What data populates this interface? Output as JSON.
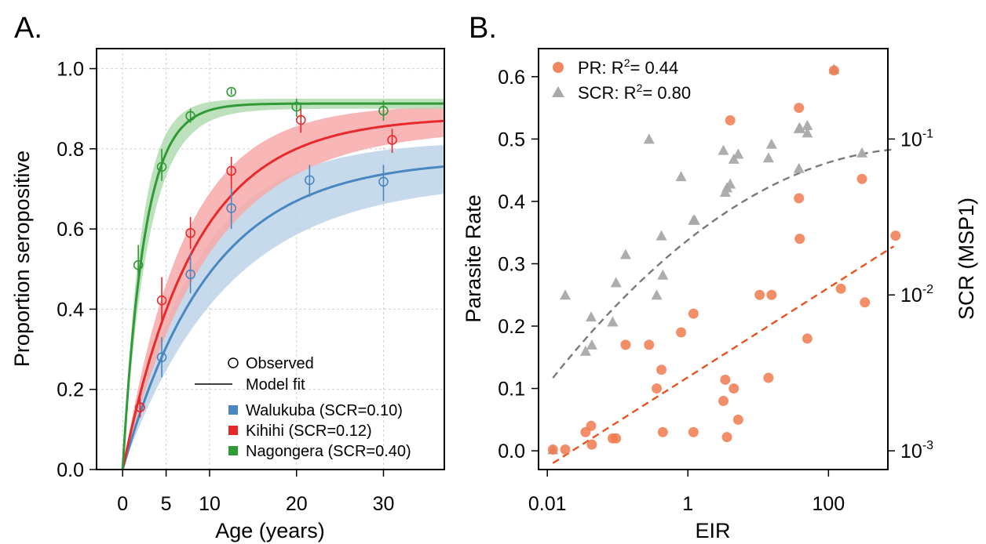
{
  "chart_data": [
    {
      "panel": "A.",
      "type": "line",
      "xlabel": "Age (years)",
      "ylabel": "Proportion seropositive",
      "xlim": [
        -3,
        37
      ],
      "ylim": [
        0,
        1.05
      ],
      "x_ticks": [
        0,
        5,
        10,
        20,
        30
      ],
      "x_tick_labels": [
        "0",
        "5",
        "10",
        "20",
        "30"
      ],
      "y_ticks": [
        0,
        0.2,
        0.4,
        0.6,
        0.8,
        1.0
      ],
      "y_tick_labels": [
        "0.0",
        "0.2",
        "0.4",
        "0.6",
        "0.8",
        "1.0"
      ],
      "grid": true,
      "legend_position": "bottom-right",
      "legend": {
        "observed": "Observed",
        "model": "Model fit"
      },
      "series": [
        {
          "name": "Walukuba (SCR=0.10)",
          "color": "#4a86c0",
          "band_color": "#bcd3e9",
          "model": {
            "scr": 0.1,
            "plateau": 0.775,
            "plateau_low": 0.72,
            "plateau_high": 0.82
          },
          "observed": [
            {
              "x": 2,
              "y": 0.155,
              "lo": 0.13,
              "hi": 0.18
            },
            {
              "x": 4.5,
              "y": 0.28,
              "lo": 0.23,
              "hi": 0.33
            },
            {
              "x": 7.8,
              "y": 0.487,
              "lo": 0.44,
              "hi": 0.54
            },
            {
              "x": 12.5,
              "y": 0.652,
              "lo": 0.6,
              "hi": 0.7
            },
            {
              "x": 21.5,
              "y": 0.722,
              "lo": 0.68,
              "hi": 0.76
            },
            {
              "x": 30,
              "y": 0.718,
              "lo": 0.67,
              "hi": 0.76
            }
          ]
        },
        {
          "name": "Kihihi (SCR=0.12)",
          "color": "#e8292a",
          "band_color": "#f7a9a9",
          "model": {
            "scr": 0.12,
            "plateau": 0.88,
            "plateau_low": 0.85,
            "plateau_high": 0.91
          },
          "observed": [
            {
              "x": 2,
              "y": 0.155,
              "lo": 0.13,
              "hi": 0.18
            },
            {
              "x": 4.5,
              "y": 0.422,
              "lo": 0.37,
              "hi": 0.48
            },
            {
              "x": 7.8,
              "y": 0.59,
              "lo": 0.55,
              "hi": 0.63
            },
            {
              "x": 12.5,
              "y": 0.745,
              "lo": 0.7,
              "hi": 0.78
            },
            {
              "x": 20.5,
              "y": 0.872,
              "lo": 0.84,
              "hi": 0.9
            },
            {
              "x": 31,
              "y": 0.822,
              "lo": 0.79,
              "hi": 0.85
            }
          ]
        },
        {
          "name": "Nagongera (SCR=0.40)",
          "color": "#2f9a36",
          "band_color": "#b3dcb2",
          "model": {
            "scr": 0.4,
            "plateau": 0.913,
            "plateau_low": 0.9,
            "plateau_high": 0.925
          },
          "observed": [
            {
              "x": 1.8,
              "y": 0.51,
              "lo": 0.46,
              "hi": 0.56
            },
            {
              "x": 4.5,
              "y": 0.755,
              "lo": 0.72,
              "hi": 0.8
            },
            {
              "x": 7.8,
              "y": 0.882,
              "lo": 0.865,
              "hi": 0.9
            },
            {
              "x": 12.5,
              "y": 0.942,
              "lo": 0.935,
              "hi": 0.95
            },
            {
              "x": 20,
              "y": 0.905,
              "lo": 0.88,
              "hi": 0.925
            },
            {
              "x": 30,
              "y": 0.895,
              "lo": 0.87,
              "hi": 0.92
            }
          ]
        }
      ]
    },
    {
      "panel": "B.",
      "type": "scatter",
      "xlabel": "EIR",
      "ylabel": "Parasite Rate",
      "y2label": "SCR (MSP1)",
      "x_scale": "log",
      "xlim": [
        0.0075,
        700
      ],
      "ylim": [
        -0.03,
        0.645
      ],
      "x_ticks": [
        0.01,
        1,
        100
      ],
      "x_tick_labels": [
        "0.01",
        "1",
        "100"
      ],
      "y_ticks": [
        0,
        0.1,
        0.2,
        0.3,
        0.4,
        0.5,
        0.6
      ],
      "y_tick_labels": [
        "0.0",
        "0.1",
        "0.2",
        "0.3",
        "0.4",
        "0.5",
        "0.6"
      ],
      "y2_scale": "log",
      "y2_ticks": [
        0.001,
        0.01,
        0.1
      ],
      "y2_tick_base": "10",
      "y2_tick_exponents": [
        "-3",
        "-2",
        "-1"
      ],
      "legend_position": "top-left",
      "series": [
        {
          "name": "PR",
          "r2_label": "PR:  R",
          "r2_value": "= 0.44",
          "marker": "circle",
          "color": "#f07a4d",
          "trend_color": "#e8531e",
          "trend": {
            "slope": 0.0717,
            "intercept": 0.118
          },
          "points": [
            [
              0.012,
              0.002
            ],
            [
              0.018,
              0.002
            ],
            [
              0.035,
              0.03
            ],
            [
              0.042,
              0.04
            ],
            [
              0.043,
              0.01
            ],
            [
              0.085,
              0.02
            ],
            [
              0.095,
              0.02
            ],
            [
              0.13,
              0.17
            ],
            [
              0.28,
              0.17
            ],
            [
              0.36,
              0.1
            ],
            [
              0.42,
              0.13
            ],
            [
              0.44,
              0.03
            ],
            [
              0.8,
              0.19
            ],
            [
              1.2,
              0.22
            ],
            [
              1.2,
              0.03
            ],
            [
              3.2,
              0.08
            ],
            [
              3.4,
              0.114
            ],
            [
              3.6,
              0.022
            ],
            [
              4.0,
              0.53
            ],
            [
              4.5,
              0.1
            ],
            [
              5.2,
              0.05
            ],
            [
              10.5,
              0.25
            ],
            [
              14,
              0.117
            ],
            [
              15.5,
              0.25
            ],
            [
              38,
              0.55
            ],
            [
              38,
              0.405
            ],
            [
              39,
              0.34
            ],
            [
              50,
              0.18
            ],
            [
              120,
              0.61
            ],
            [
              150,
              0.26
            ],
            [
              300,
              0.436
            ],
            [
              330,
              0.238
            ],
            [
              900,
              0.345
            ]
          ]
        },
        {
          "name": "SCR",
          "r2_label": "SCR:  R",
          "r2_value": "= 0.80",
          "marker": "triangle",
          "color": "#a9a9a9",
          "trend_color": "#7a7a7a",
          "trend": {
            "x_range": [
              0.012,
              900
            ],
            "y_start": 0.117,
            "quad": -0.0135,
            "lin": 0.141
          },
          "points": [
            [
              0.012,
              0.002
            ],
            [
              0.018,
              0.25
            ],
            [
              0.035,
              0.16
            ],
            [
              0.042,
              0.215
            ],
            [
              0.043,
              0.17
            ],
            [
              0.085,
              0.207
            ],
            [
              0.095,
              0.27
            ],
            [
              0.13,
              0.315
            ],
            [
              0.28,
              0.5
            ],
            [
              0.36,
              0.25
            ],
            [
              0.42,
              0.345
            ],
            [
              0.44,
              0.282
            ],
            [
              0.8,
              0.44
            ],
            [
              1.2,
              0.37
            ],
            [
              1.25,
              0.37
            ],
            [
              3.2,
              0.482
            ],
            [
              3.4,
              0.415
            ],
            [
              3.6,
              0.422
            ],
            [
              4.0,
              0.428
            ],
            [
              4.5,
              0.468
            ],
            [
              5.2,
              0.476
            ],
            [
              14,
              0.47
            ],
            [
              15.5,
              0.492
            ],
            [
              38,
              0.453
            ],
            [
              38,
              0.517
            ],
            [
              39,
              0.518
            ],
            [
              50,
              0.522
            ],
            [
              50,
              0.51
            ],
            [
              120,
              0.612
            ],
            [
              300,
              0.478
            ]
          ]
        }
      ]
    }
  ]
}
